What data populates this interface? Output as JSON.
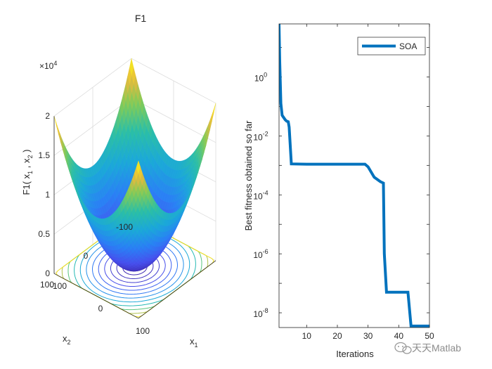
{
  "chart_data": [
    {
      "type": "surface3d",
      "title": "F1",
      "function": "x1^2 + x2^2",
      "zlabel_parts": [
        "F1( x",
        "1",
        " , x",
        "2",
        " )"
      ],
      "xlabel_base": "x",
      "xlabel_sub": "1",
      "ylabel_base": "x",
      "ylabel_sub": "2",
      "x_range": [
        -100,
        100
      ],
      "y_range": [
        -100,
        100
      ],
      "z_range": [
        0,
        20000
      ],
      "x_ticks": [
        "-100",
        "0",
        "100"
      ],
      "y_ticks": [
        "-100",
        "0",
        "100"
      ],
      "z_ticks": [
        "0",
        "0.5",
        "1",
        "1.5",
        "2"
      ],
      "z_multiplier_base": "×10",
      "z_multiplier_exp": "4",
      "contour_levels": 13,
      "colormap": "parula"
    },
    {
      "type": "line",
      "yscale": "log",
      "xlabel": "Iterations",
      "ylabel": "Best fitness obtained so far",
      "xlim": [
        1,
        50
      ],
      "ylim_log10": [
        -8.5,
        1.8
      ],
      "x_ticks": [
        "10",
        "20",
        "30",
        "40",
        "50"
      ],
      "y_tick_base": "10",
      "y_tick_exps": [
        "0",
        "-2",
        "-4",
        "-6",
        "-8"
      ],
      "legend": "SOA",
      "legend_position": "top-right",
      "series_color": "#0072BD",
      "series": [
        {
          "name": "SOA",
          "x": [
            1,
            1.2,
            1.6,
            2,
            3,
            3.5,
            4,
            4.3,
            5,
            10,
            20,
            29,
            30,
            32,
            34,
            35,
            35.3,
            36,
            43,
            44,
            50
          ],
          "log10_y": [
            1.8,
            0.6,
            -0.9,
            -1.3,
            -1.45,
            -1.5,
            -1.52,
            -1.7,
            -2.95,
            -2.96,
            -2.96,
            -2.96,
            -3.05,
            -3.4,
            -3.55,
            -3.6,
            -6.0,
            -7.3,
            -7.3,
            -8.45,
            -8.45
          ]
        }
      ]
    }
  ],
  "watermark": {
    "text": "天天Matlab"
  }
}
